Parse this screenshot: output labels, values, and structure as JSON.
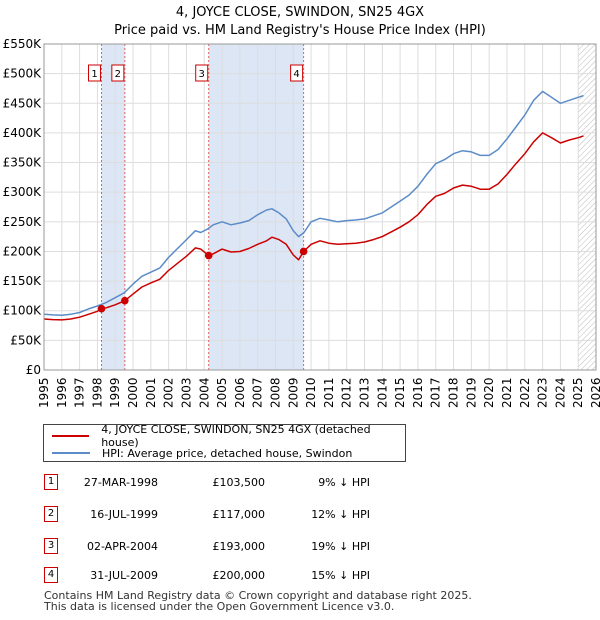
{
  "title_line1": "4, JOYCE CLOSE, SWINDON, SN25 4GX",
  "title_line2": "Price paid vs. HM Land Registry's House Price Index (HPI)",
  "legend": {
    "price_label": "4, JOYCE CLOSE, SWINDON, SN25 4GX (detached house)",
    "hpi_label": "HPI: Average price, detached house, Swindon"
  },
  "colors": {
    "price_line": "#cc0000",
    "hpi_line": "#5b8cc8",
    "shade": "#dde6f5",
    "vline": "#e06060",
    "grid": "#dddddd"
  },
  "transactions": [
    {
      "num": "1",
      "date": "27-MAR-1998",
      "price": "£103,500",
      "hpi": "9% ↓ HPI"
    },
    {
      "num": "2",
      "date": "16-JUL-1999",
      "price": "£117,000",
      "hpi": "12% ↓ HPI"
    },
    {
      "num": "3",
      "date": "02-APR-2004",
      "price": "£193,000",
      "hpi": "19% ↓ HPI"
    },
    {
      "num": "4",
      "date": "31-JUL-2009",
      "price": "£200,000",
      "hpi": "15% ↓ HPI"
    }
  ],
  "footer": {
    "line1": "Contains HM Land Registry data © Crown copyright and database right 2025.",
    "line2": "This data is licensed under the Open Government Licence v3.0."
  },
  "chart_data": {
    "type": "line",
    "title": "4, JOYCE CLOSE, SWINDON, SN25 4GX — Price paid vs. HM Land Registry's House Price Index (HPI)",
    "xlim": [
      1995,
      2026
    ],
    "ylim": [
      0,
      550000
    ],
    "x_ticks": [
      1995,
      1996,
      1997,
      1998,
      1999,
      2000,
      2001,
      2002,
      2003,
      2004,
      2005,
      2006,
      2007,
      2008,
      2009,
      2010,
      2011,
      2012,
      2013,
      2014,
      2015,
      2016,
      2017,
      2018,
      2019,
      2020,
      2021,
      2022,
      2023,
      2024,
      2025,
      2026
    ],
    "y_ticks": [
      {
        "value": 0,
        "label": "£0"
      },
      {
        "value": 50000,
        "label": "£50K"
      },
      {
        "value": 100000,
        "label": "£100K"
      },
      {
        "value": 150000,
        "label": "£150K"
      },
      {
        "value": 200000,
        "label": "£200K"
      },
      {
        "value": 250000,
        "label": "£250K"
      },
      {
        "value": 300000,
        "label": "£300K"
      },
      {
        "value": 350000,
        "label": "£350K"
      },
      {
        "value": 400000,
        "label": "£400K"
      },
      {
        "value": 450000,
        "label": "£450K"
      },
      {
        "value": 500000,
        "label": "£500K"
      },
      {
        "value": 550000,
        "label": "£550K"
      }
    ],
    "shaded_ranges": [
      [
        1998.23,
        1999.54
      ],
      [
        2004.25,
        2009.58
      ]
    ],
    "marker_lines": [
      {
        "label": "1",
        "x": 1998.23
      },
      {
        "label": "2",
        "x": 1999.54
      },
      {
        "label": "3",
        "x": 2004.25
      },
      {
        "label": "4",
        "x": 2009.58
      }
    ],
    "projection_start": 2025.0,
    "sale_points": [
      {
        "label": "1",
        "x": 1998.23,
        "y": 103500
      },
      {
        "label": "2",
        "x": 1999.54,
        "y": 117000
      },
      {
        "label": "3",
        "x": 2004.25,
        "y": 193000
      },
      {
        "label": "4",
        "x": 2009.58,
        "y": 200000
      }
    ],
    "series": [
      {
        "name": "HPI: Average price, detached house, Swindon",
        "color": "#5b8cc8",
        "points": [
          [
            1995.0,
            94000
          ],
          [
            1995.5,
            93000
          ],
          [
            1996.0,
            92500
          ],
          [
            1996.5,
            94000
          ],
          [
            1997.0,
            97000
          ],
          [
            1997.5,
            103000
          ],
          [
            1998.0,
            108000
          ],
          [
            1998.5,
            114000
          ],
          [
            1999.0,
            122000
          ],
          [
            1999.5,
            130000
          ],
          [
            2000.0,
            145000
          ],
          [
            2000.5,
            158000
          ],
          [
            2001.0,
            165000
          ],
          [
            2001.5,
            172000
          ],
          [
            2002.0,
            190000
          ],
          [
            2002.5,
            205000
          ],
          [
            2003.0,
            220000
          ],
          [
            2003.5,
            235000
          ],
          [
            2003.8,
            232000
          ],
          [
            2004.2,
            238000
          ],
          [
            2004.5,
            245000
          ],
          [
            2005.0,
            250000
          ],
          [
            2005.5,
            245000
          ],
          [
            2006.0,
            248000
          ],
          [
            2006.5,
            252000
          ],
          [
            2007.0,
            262000
          ],
          [
            2007.5,
            270000
          ],
          [
            2007.8,
            272000
          ],
          [
            2008.2,
            265000
          ],
          [
            2008.6,
            255000
          ],
          [
            2009.0,
            235000
          ],
          [
            2009.3,
            225000
          ],
          [
            2009.6,
            232000
          ],
          [
            2010.0,
            250000
          ],
          [
            2010.5,
            256000
          ],
          [
            2011.0,
            253000
          ],
          [
            2011.5,
            250000
          ],
          [
            2012.0,
            252000
          ],
          [
            2012.5,
            253000
          ],
          [
            2013.0,
            255000
          ],
          [
            2013.5,
            260000
          ],
          [
            2014.0,
            265000
          ],
          [
            2014.5,
            275000
          ],
          [
            2015.0,
            285000
          ],
          [
            2015.5,
            295000
          ],
          [
            2016.0,
            310000
          ],
          [
            2016.5,
            330000
          ],
          [
            2017.0,
            348000
          ],
          [
            2017.5,
            355000
          ],
          [
            2018.0,
            365000
          ],
          [
            2018.5,
            370000
          ],
          [
            2019.0,
            368000
          ],
          [
            2019.5,
            362000
          ],
          [
            2020.0,
            362000
          ],
          [
            2020.5,
            372000
          ],
          [
            2021.0,
            390000
          ],
          [
            2021.5,
            410000
          ],
          [
            2022.0,
            430000
          ],
          [
            2022.5,
            455000
          ],
          [
            2023.0,
            470000
          ],
          [
            2023.5,
            460000
          ],
          [
            2024.0,
            450000
          ],
          [
            2024.5,
            455000
          ],
          [
            2025.0,
            460000
          ],
          [
            2025.3,
            463000
          ]
        ]
      },
      {
        "name": "4, JOYCE CLOSE, SWINDON, SN25 4GX (detached house)",
        "color": "#cc0000",
        "points": [
          [
            1995.0,
            86000
          ],
          [
            1995.5,
            85000
          ],
          [
            1996.0,
            84500
          ],
          [
            1996.5,
            86000
          ],
          [
            1997.0,
            89000
          ],
          [
            1997.5,
            94000
          ],
          [
            1998.0,
            99000
          ],
          [
            1998.23,
            103500
          ],
          [
            1998.5,
            105000
          ],
          [
            1999.0,
            110000
          ],
          [
            1999.54,
            117000
          ],
          [
            2000.0,
            128000
          ],
          [
            2000.5,
            140000
          ],
          [
            2001.0,
            147000
          ],
          [
            2001.5,
            153000
          ],
          [
            2002.0,
            168000
          ],
          [
            2002.5,
            180000
          ],
          [
            2003.0,
            192000
          ],
          [
            2003.5,
            206000
          ],
          [
            2003.8,
            204000
          ],
          [
            2004.25,
            193000
          ],
          [
            2004.5,
            196000
          ],
          [
            2005.0,
            204000
          ],
          [
            2005.5,
            199000
          ],
          [
            2006.0,
            200000
          ],
          [
            2006.5,
            205000
          ],
          [
            2007.0,
            212000
          ],
          [
            2007.5,
            218000
          ],
          [
            2007.8,
            224000
          ],
          [
            2008.2,
            220000
          ],
          [
            2008.6,
            212000
          ],
          [
            2009.0,
            194000
          ],
          [
            2009.3,
            186000
          ],
          [
            2009.58,
            200000
          ],
          [
            2010.0,
            212000
          ],
          [
            2010.5,
            218000
          ],
          [
            2011.0,
            214000
          ],
          [
            2011.5,
            212000
          ],
          [
            2012.0,
            213000
          ],
          [
            2012.5,
            214000
          ],
          [
            2013.0,
            216000
          ],
          [
            2013.5,
            220000
          ],
          [
            2014.0,
            225000
          ],
          [
            2014.5,
            233000
          ],
          [
            2015.0,
            241000
          ],
          [
            2015.5,
            250000
          ],
          [
            2016.0,
            262000
          ],
          [
            2016.5,
            279000
          ],
          [
            2017.0,
            293000
          ],
          [
            2017.5,
            298000
          ],
          [
            2018.0,
            307000
          ],
          [
            2018.5,
            312000
          ],
          [
            2019.0,
            310000
          ],
          [
            2019.5,
            305000
          ],
          [
            2020.0,
            305000
          ],
          [
            2020.5,
            314000
          ],
          [
            2021.0,
            330000
          ],
          [
            2021.5,
            348000
          ],
          [
            2022.0,
            365000
          ],
          [
            2022.5,
            385000
          ],
          [
            2023.0,
            400000
          ],
          [
            2023.5,
            392000
          ],
          [
            2024.0,
            383000
          ],
          [
            2024.5,
            388000
          ],
          [
            2025.0,
            392000
          ],
          [
            2025.3,
            395000
          ]
        ]
      }
    ]
  }
}
